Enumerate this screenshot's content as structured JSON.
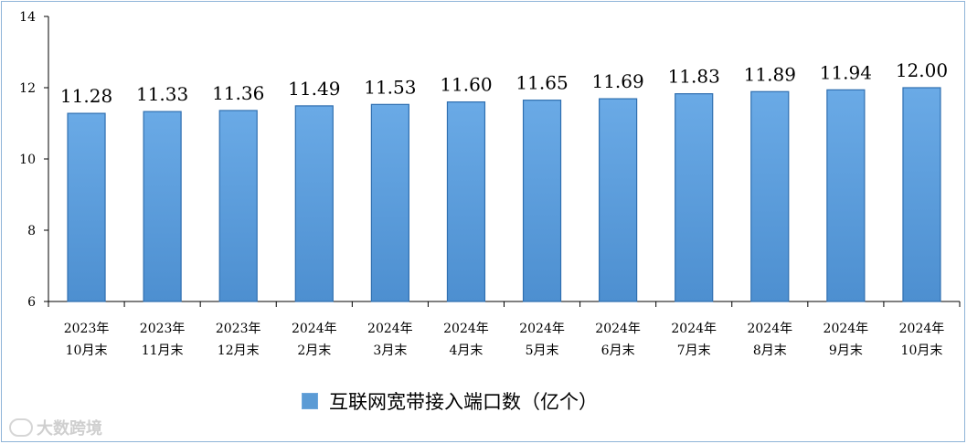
{
  "chart_data": {
    "type": "bar",
    "categories": [
      [
        "2023年",
        "10月末"
      ],
      [
        "2023年",
        "11月末"
      ],
      [
        "2023年",
        "12月末"
      ],
      [
        "2024年",
        "2月末"
      ],
      [
        "2024年",
        "3月末"
      ],
      [
        "2024年",
        "4月末"
      ],
      [
        "2024年",
        "5月末"
      ],
      [
        "2024年",
        "6月末"
      ],
      [
        "2024年",
        "7月末"
      ],
      [
        "2024年",
        "8月末"
      ],
      [
        "2024年",
        "9月末"
      ],
      [
        "2024年",
        "10月末"
      ]
    ],
    "series": [
      {
        "name": "互联网宽带接入端口数（亿个）",
        "values": [
          11.28,
          11.33,
          11.36,
          11.49,
          11.53,
          11.6,
          11.65,
          11.69,
          11.83,
          11.89,
          11.94,
          12.0
        ],
        "data_labels": [
          "11.28",
          "11.33",
          "11.36",
          "11.49",
          "11.53",
          "11.60",
          "11.65",
          "11.69",
          "11.83",
          "11.89",
          "11.94",
          "12.00"
        ]
      }
    ],
    "ylim": [
      6,
      14
    ],
    "yticks": [
      "6",
      "8",
      "10",
      "12",
      "14"
    ],
    "grid": false,
    "legend_position": "bottom",
    "bar_color": "#5b9bd5"
  },
  "watermark": {
    "text": "大数跨境"
  }
}
